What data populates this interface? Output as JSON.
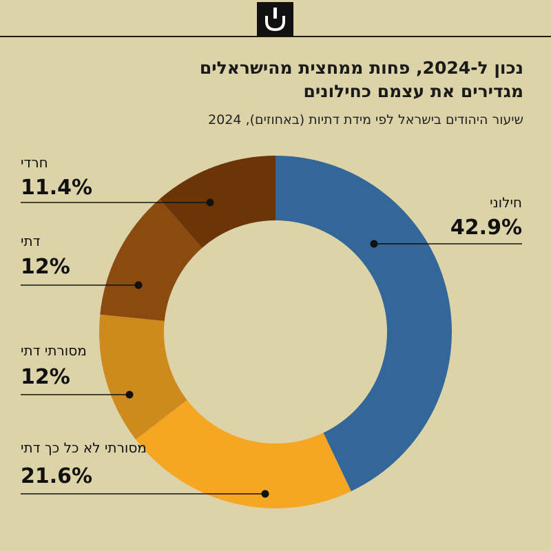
{
  "header": {
    "logo_icon": "haaretz-shin-logo-icon",
    "title_line1": "נכון ל-2024, פחות ממחצית מהישראלים",
    "title_line2": "מגדירים את עצמם כחילונים",
    "subtitle": "שיעור היהודים בישראל לפי מידת דתיות (באחוזים), 2024"
  },
  "chart_data": {
    "type": "pie",
    "style": "donut",
    "title": "נכון ל-2024, פחות ממחצית מהישראלים מגדירים את עצמם כחילונים",
    "subtitle": "שיעור היהודים בישראל לפי מידת דתיות (באחוזים), 2024",
    "unit": "%",
    "slices": [
      {
        "label": "חילוני",
        "value": 42.9,
        "display": "42.9%",
        "color": "#336699"
      },
      {
        "label": "מסורתי לא כל כך דתי",
        "value": 21.6,
        "display": "21.6%",
        "color": "#f5a623"
      },
      {
        "label": "מסורתי דתי",
        "value": 12,
        "display": "12%",
        "color": "#cf8a1d"
      },
      {
        "label": "דתי",
        "value": 12,
        "display": "12%",
        "color": "#8b4a10"
      },
      {
        "label": "חרדי",
        "value": 11.4,
        "display": "11.4%",
        "color": "#6b3508"
      }
    ]
  },
  "colors": {
    "background": "#dcd3a9",
    "text": "#111111"
  }
}
